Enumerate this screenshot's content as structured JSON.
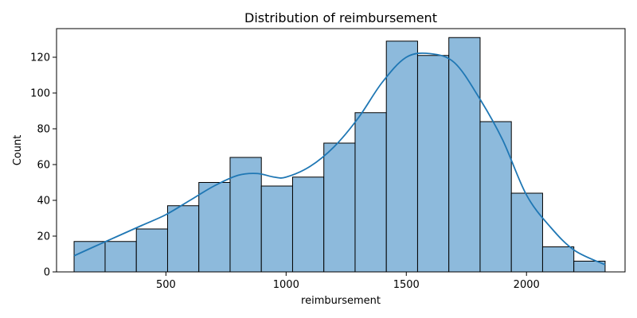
{
  "chart_data": {
    "type": "histogram",
    "title": "Distribution of reimbursement",
    "xlabel": "reimbursement",
    "ylabel": "Count",
    "xlim": [
      45,
      2410
    ],
    "ylim": [
      0,
      136
    ],
    "xticks": [
      500,
      1000,
      1500,
      2000
    ],
    "yticks": [
      0,
      20,
      40,
      60,
      80,
      100,
      120
    ],
    "bins": [
      {
        "x0": 118,
        "x1": 247,
        "count": 17
      },
      {
        "x0": 247,
        "x1": 377,
        "count": 17
      },
      {
        "x0": 377,
        "x1": 507,
        "count": 24
      },
      {
        "x0": 507,
        "x1": 637,
        "count": 37
      },
      {
        "x0": 637,
        "x1": 767,
        "count": 50
      },
      {
        "x0": 767,
        "x1": 897,
        "count": 64
      },
      {
        "x0": 897,
        "x1": 1027,
        "count": 48
      },
      {
        "x0": 1027,
        "x1": 1157,
        "count": 53
      },
      {
        "x0": 1157,
        "x1": 1287,
        "count": 72
      },
      {
        "x0": 1287,
        "x1": 1417,
        "count": 89
      },
      {
        "x0": 1417,
        "x1": 1547,
        "count": 129
      },
      {
        "x0": 1547,
        "x1": 1677,
        "count": 121
      },
      {
        "x0": 1677,
        "x1": 1807,
        "count": 131
      },
      {
        "x0": 1807,
        "x1": 1937,
        "count": 84
      },
      {
        "x0": 1937,
        "x1": 2067,
        "count": 44
      },
      {
        "x0": 2067,
        "x1": 2197,
        "count": 14
      },
      {
        "x0": 2197,
        "x1": 2327,
        "count": 6
      }
    ],
    "kde": {
      "x": [
        118,
        200,
        300,
        400,
        500,
        600,
        700,
        800,
        880,
        950,
        1000,
        1100,
        1200,
        1300,
        1400,
        1500,
        1600,
        1700,
        1800,
        1900,
        2000,
        2100,
        2200,
        2327
      ],
      "y": [
        9,
        14,
        20,
        26,
        32,
        40,
        48,
        54,
        55,
        53,
        53,
        59,
        70,
        86,
        106,
        120,
        122,
        117,
        98,
        74,
        43,
        25,
        12,
        4
      ]
    },
    "colors": {
      "bar_fill": "#8dbadc",
      "bar_edge": "#000000",
      "kde_line": "#1f77b4"
    },
    "grid": false
  }
}
